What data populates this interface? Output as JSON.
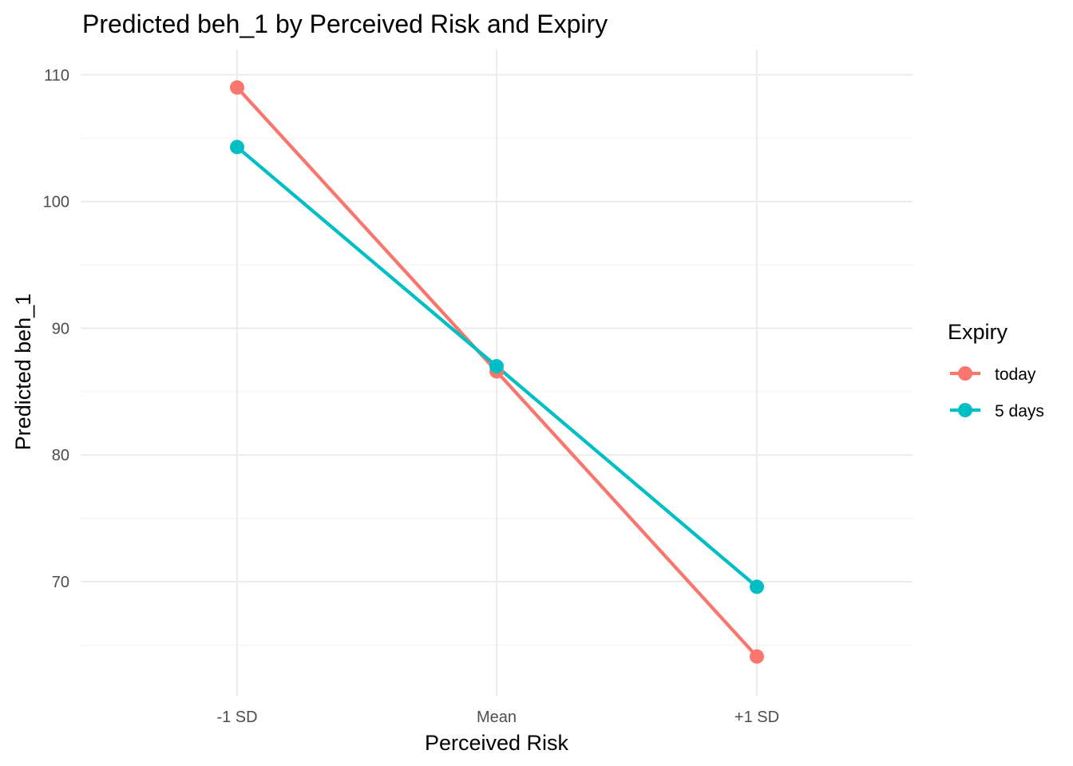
{
  "chart_data": {
    "type": "line",
    "title": "Predicted beh_1 by Perceived Risk and Expiry",
    "xlabel": "Perceived Risk",
    "ylabel": "Predicted beh_1",
    "categories": [
      "-1 SD",
      "Mean",
      "+1 SD"
    ],
    "ylim": [
      61,
      112
    ],
    "yticks": [
      70,
      80,
      90,
      100,
      110
    ],
    "grid": true,
    "legend": {
      "title": "Expiry",
      "position": "right"
    },
    "series": [
      {
        "name": "today",
        "color": "#F8766D",
        "values": [
          109,
          86.6,
          64.1
        ]
      },
      {
        "name": "5 days",
        "color": "#00BFC4",
        "values": [
          104.3,
          87,
          69.6
        ]
      }
    ]
  }
}
